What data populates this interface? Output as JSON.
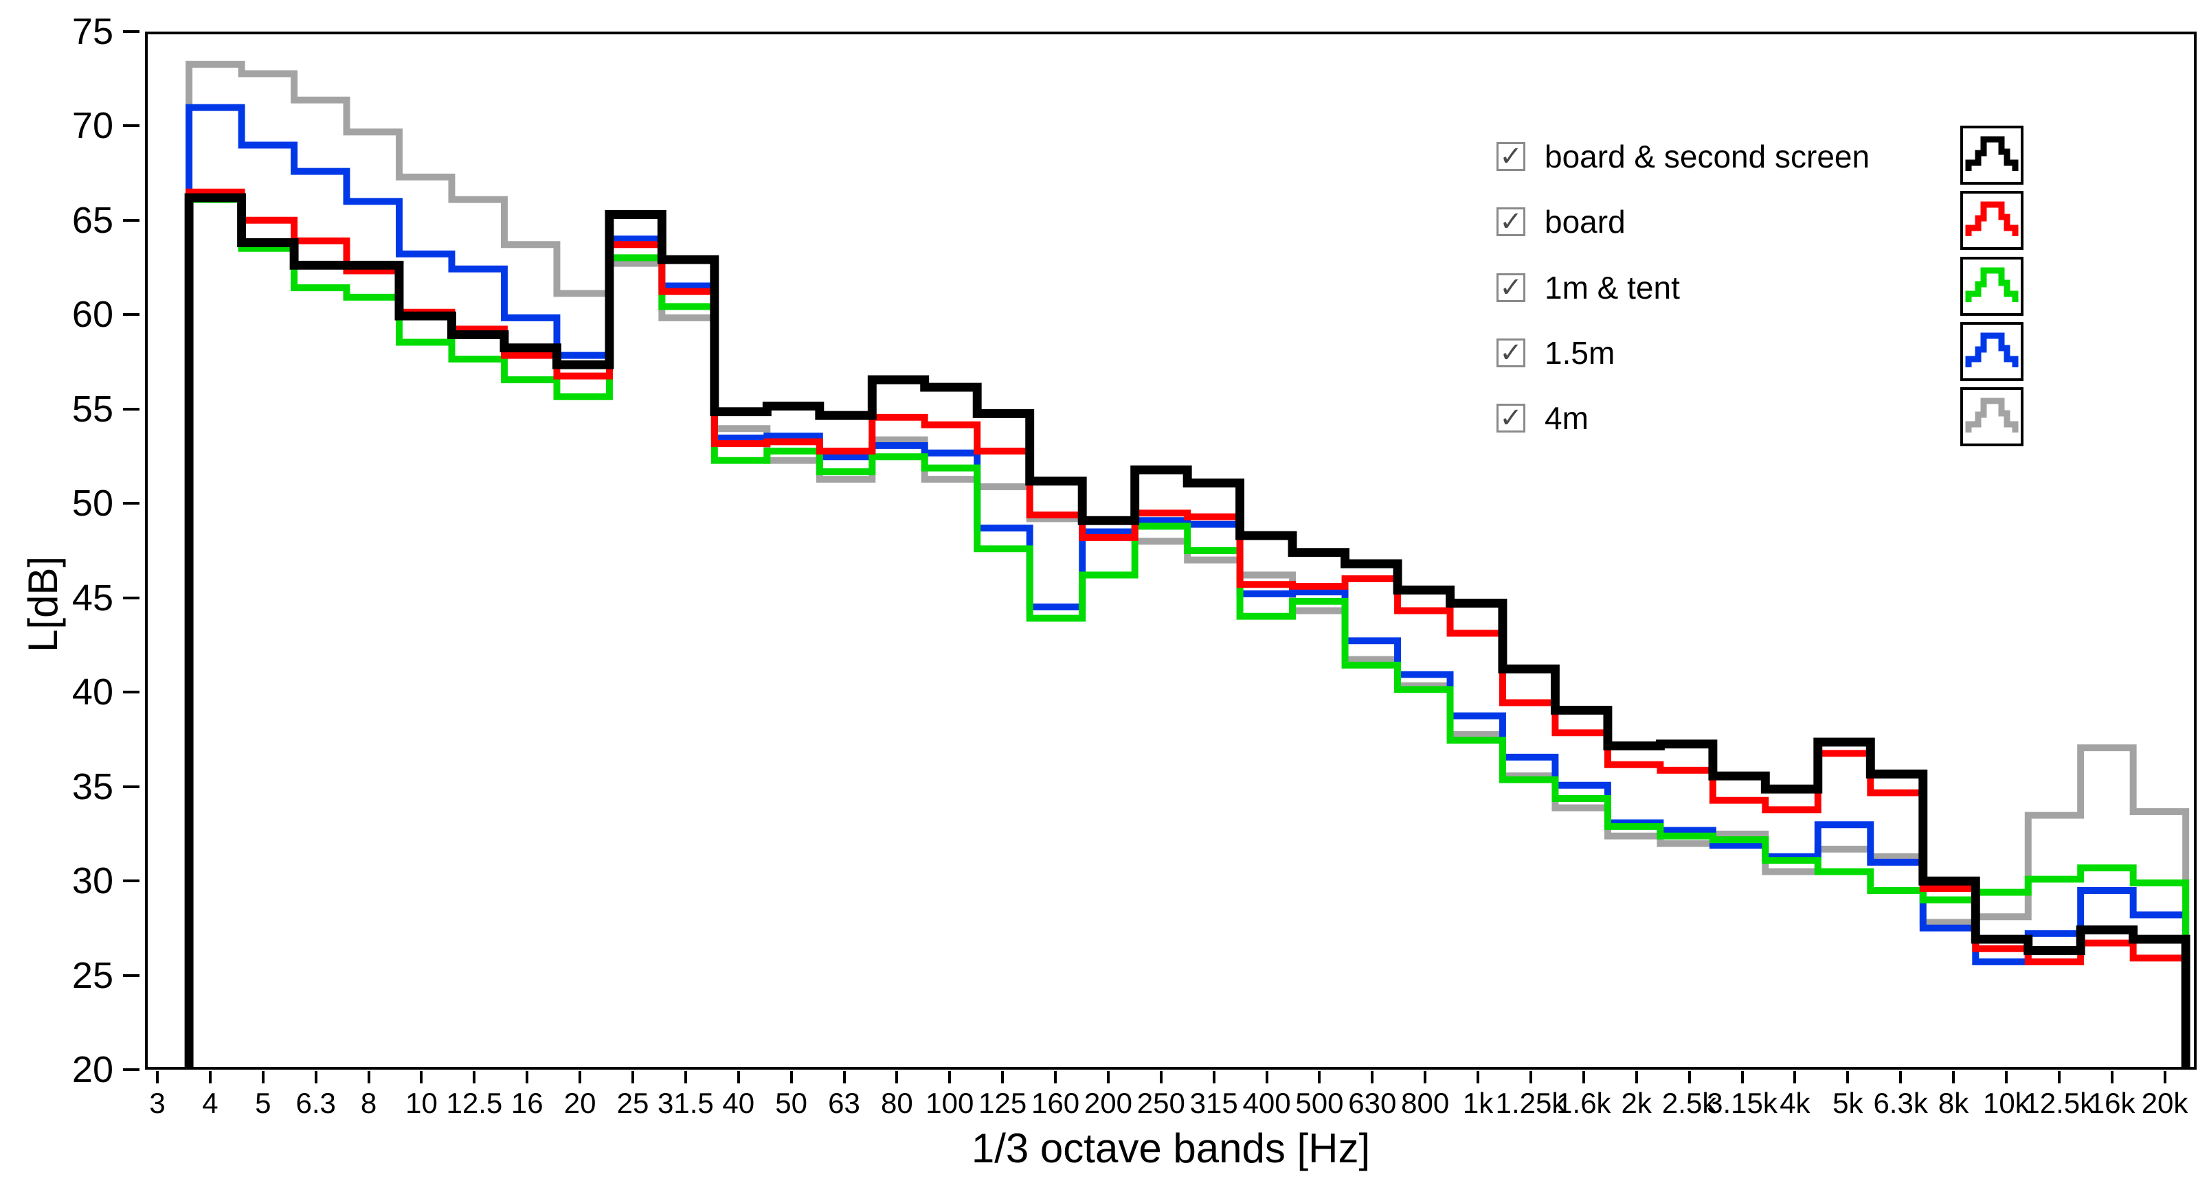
{
  "chart_data": {
    "type": "bar",
    "subtype": "overlapping-outline-staircase",
    "title": "",
    "xlabel": "1/3 octave bands [Hz]",
    "ylabel": "L[dB]",
    "x_axis_start_label": "3",
    "ylim": [
      20,
      75
    ],
    "yticks": [
      75,
      70,
      65,
      60,
      55,
      50,
      45,
      40,
      35,
      30,
      25,
      20
    ],
    "grid": false,
    "legend_position": "top-right-inside",
    "categories": [
      "4",
      "5",
      "6.3",
      "8",
      "10",
      "12.5",
      "16",
      "20",
      "25",
      "31.5",
      "40",
      "50",
      "63",
      "80",
      "100",
      "125",
      "160",
      "200",
      "250",
      "315",
      "400",
      "500",
      "630",
      "800",
      "1k",
      "1.25k",
      "1.6k",
      "2k",
      "2.5k",
      "3.15k",
      "4k",
      "5k",
      "6.3k",
      "8k",
      "10k",
      "12.5k",
      "16k",
      "20k"
    ],
    "series": [
      {
        "name": "board & second screen",
        "color": "#000000",
        "checked": true,
        "values": [
          66.3,
          63.9,
          62.7,
          62.7,
          60.0,
          59.0,
          58.3,
          57.4,
          65.4,
          63.0,
          54.9,
          55.2,
          54.7,
          56.6,
          56.2,
          54.8,
          51.2,
          49.1,
          51.8,
          51.1,
          48.3,
          47.4,
          46.8,
          45.4,
          44.7,
          41.2,
          39.0,
          37.1,
          37.2,
          35.5,
          34.8,
          37.3,
          35.6,
          29.9,
          26.8,
          26.2,
          27.3,
          26.8
        ]
      },
      {
        "name": "board",
        "color": "#ff0000",
        "checked": true,
        "values": [
          66.6,
          65.1,
          64.0,
          62.4,
          60.2,
          59.3,
          57.9,
          56.8,
          63.8,
          61.3,
          53.2,
          53.3,
          52.8,
          54.6,
          54.2,
          52.8,
          49.4,
          48.2,
          49.5,
          49.3,
          45.7,
          45.6,
          46.0,
          44.3,
          43.1,
          39.4,
          37.8,
          36.1,
          35.8,
          34.2,
          33.7,
          36.7,
          34.6,
          29.5,
          26.3,
          25.6,
          26.6,
          25.8
        ]
      },
      {
        "name": "1m & tent",
        "color": "#00dc00",
        "checked": true,
        "values": [
          66.2,
          63.6,
          61.5,
          61.0,
          58.6,
          57.7,
          56.6,
          55.7,
          63.1,
          60.5,
          52.3,
          52.8,
          51.7,
          52.5,
          51.9,
          47.6,
          43.9,
          46.2,
          48.8,
          47.5,
          44.0,
          44.8,
          41.4,
          40.1,
          37.4,
          35.3,
          34.3,
          32.8,
          32.3,
          32.1,
          31.0,
          30.4,
          29.4,
          28.9,
          29.3,
          30.0,
          30.6,
          29.8
        ]
      },
      {
        "name": "1.5m",
        "color": "#0038e8",
        "checked": true,
        "values": [
          71.1,
          69.1,
          67.7,
          66.1,
          63.3,
          62.5,
          59.9,
          57.9,
          64.1,
          61.6,
          53.5,
          53.6,
          52.5,
          53.1,
          52.7,
          48.7,
          44.5,
          48.5,
          49.1,
          48.9,
          45.2,
          45.3,
          42.7,
          40.9,
          38.7,
          36.5,
          35.0,
          33.0,
          32.6,
          31.8,
          31.2,
          32.9,
          30.9,
          27.4,
          25.6,
          27.1,
          29.4,
          28.1
        ]
      },
      {
        "name": "4m",
        "color": "#a3a3a3",
        "checked": true,
        "values": [
          73.4,
          72.9,
          71.5,
          69.8,
          67.4,
          66.2,
          63.8,
          61.2,
          62.8,
          59.9,
          54.0,
          52.3,
          51.3,
          53.4,
          51.3,
          50.9,
          49.2,
          48.4,
          48.0,
          47.0,
          46.2,
          44.3,
          41.7,
          40.3,
          37.7,
          35.5,
          33.8,
          32.3,
          31.9,
          32.4,
          30.4,
          31.6,
          31.2,
          27.7,
          28.0,
          33.4,
          37.0,
          33.6
        ]
      }
    ],
    "draw_order_bottom_to_top": [
      "4m",
      "1.5m",
      "1m & tent",
      "board",
      "board & second screen"
    ],
    "checkmark_glyph": "✓"
  },
  "layout_note_visible_text_only": {
    "ylabel": "L[dB]",
    "xlabel": "1/3 octave bands [Hz]"
  }
}
